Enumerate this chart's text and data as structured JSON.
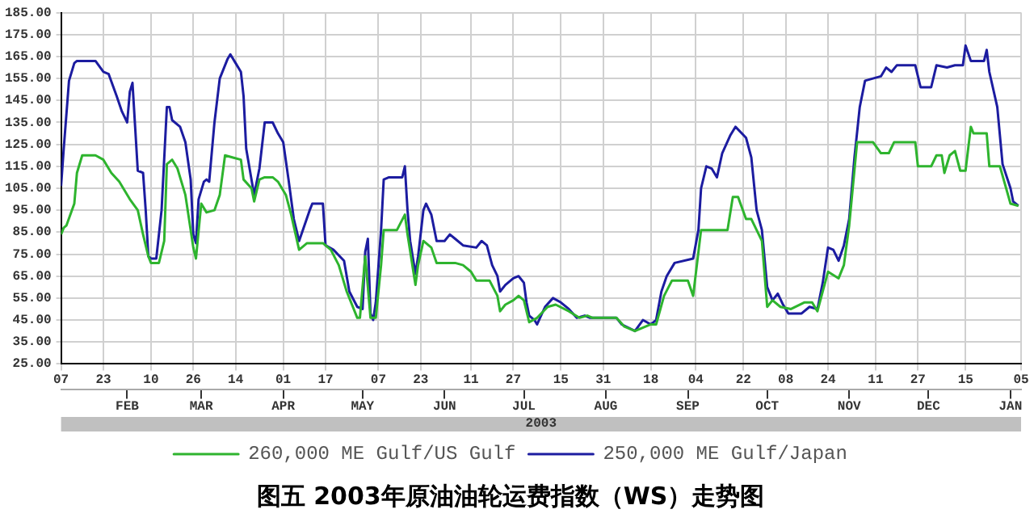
{
  "chart_data": {
    "type": "line",
    "title": "图五 2003年原油油轮运费指数（WS）走势图",
    "xlabel": "2003",
    "xlim": [
      "2003-01-07",
      "2004-01-05"
    ],
    "xticks": [
      {
        "value": "2003-01-07",
        "label": "07"
      },
      {
        "value": "2003-01-23",
        "label": "23"
      },
      {
        "value": "2003-02-10",
        "label": "10"
      },
      {
        "value": "2003-02-26",
        "label": "26"
      },
      {
        "value": "2003-03-14",
        "label": "14"
      },
      {
        "value": "2003-04-01",
        "label": "01"
      },
      {
        "value": "2003-04-17",
        "label": "17"
      },
      {
        "value": "2003-05-07",
        "label": "07"
      },
      {
        "value": "2003-05-23",
        "label": "23"
      },
      {
        "value": "2003-06-11",
        "label": "11"
      },
      {
        "value": "2003-06-27",
        "label": "27"
      },
      {
        "value": "2003-07-15",
        "label": "15"
      },
      {
        "value": "2003-07-31",
        "label": "31"
      },
      {
        "value": "2003-08-18",
        "label": "18"
      },
      {
        "value": "2003-09-04",
        "label": "04"
      },
      {
        "value": "2003-09-22",
        "label": "22"
      },
      {
        "value": "2003-10-08",
        "label": "08"
      },
      {
        "value": "2003-10-24",
        "label": "24"
      },
      {
        "value": "2003-11-11",
        "label": "11"
      },
      {
        "value": "2003-11-27",
        "label": "27"
      },
      {
        "value": "2003-12-15",
        "label": "15"
      },
      {
        "value": "2004-01-05",
        "label": "05"
      }
    ],
    "x2lim": [
      "2003-01-07",
      "2004-01-05"
    ],
    "x2ticks": [
      {
        "value": "2003-02-01",
        "label": "FEB"
      },
      {
        "value": "2003-03-01",
        "label": "MAR"
      },
      {
        "value": "2003-04-01",
        "label": "APR"
      },
      {
        "value": "2003-05-01",
        "label": "MAY"
      },
      {
        "value": "2003-06-01",
        "label": "JUN"
      },
      {
        "value": "2003-07-01",
        "label": "JUL"
      },
      {
        "value": "2003-08-01",
        "label": "AUG"
      },
      {
        "value": "2003-09-01",
        "label": "SEP"
      },
      {
        "value": "2003-10-01",
        "label": "OCT"
      },
      {
        "value": "2003-11-01",
        "label": "NOV"
      },
      {
        "value": "2003-12-01",
        "label": "DEC"
      },
      {
        "value": "2004-01-01",
        "label": "JAN"
      }
    ],
    "ylim": [
      25,
      185
    ],
    "yticks": [
      {
        "value": 25,
        "label": "25.00"
      },
      {
        "value": 35,
        "label": "35.00"
      },
      {
        "value": 45,
        "label": "45.00"
      },
      {
        "value": 55,
        "label": "55.00"
      },
      {
        "value": 65,
        "label": "65.00"
      },
      {
        "value": 75,
        "label": "75.00"
      },
      {
        "value": 85,
        "label": "85.00"
      },
      {
        "value": 95,
        "label": "95.00"
      },
      {
        "value": 105,
        "label": "105.00"
      },
      {
        "value": 115,
        "label": "115.00"
      },
      {
        "value": 125,
        "label": "125.00"
      },
      {
        "value": 135,
        "label": "135.00"
      },
      {
        "value": 145,
        "label": "145.00"
      },
      {
        "value": 155,
        "label": "155.00"
      },
      {
        "value": 165,
        "label": "165.00"
      },
      {
        "value": 175,
        "label": "175.00"
      },
      {
        "value": 185,
        "label": "185.00"
      }
    ],
    "grid": true,
    "legend": "bottom",
    "marker": "none",
    "line_style": "solid",
    "series": [
      {
        "name": "260,000 ME Gulf/US Gulf",
        "color": "#2eb42e",
        "x": [
          "2003-01-07",
          "2003-01-08",
          "2003-01-09",
          "2003-01-12",
          "2003-01-13",
          "2003-01-15",
          "2003-01-20",
          "2003-01-23",
          "2003-01-26",
          "2003-01-29",
          "2003-02-02",
          "2003-02-05",
          "2003-02-07",
          "2003-02-09",
          "2003-02-10",
          "2003-02-13",
          "2003-02-15",
          "2003-02-16",
          "2003-02-18",
          "2003-02-20",
          "2003-02-23",
          "2003-02-25",
          "2003-02-26",
          "2003-02-27",
          "2003-03-01",
          "2003-03-03",
          "2003-03-06",
          "2003-03-08",
          "2003-03-10",
          "2003-03-13",
          "2003-03-16",
          "2003-03-17",
          "2003-03-20",
          "2003-03-21",
          "2003-03-23",
          "2003-03-25",
          "2003-03-28",
          "2003-03-30",
          "2003-04-02",
          "2003-04-04",
          "2003-04-07",
          "2003-04-10",
          "2003-04-16",
          "2003-04-19",
          "2003-04-22",
          "2003-04-25",
          "2003-04-29",
          "2003-04-30",
          "2003-05-02",
          "2003-05-04",
          "2003-05-06",
          "2003-05-08",
          "2003-05-09",
          "2003-05-14",
          "2003-05-17",
          "2003-05-18",
          "2003-05-21",
          "2003-05-22",
          "2003-05-24",
          "2003-05-27",
          "2003-05-29",
          "2003-06-05",
          "2003-06-08",
          "2003-06-11",
          "2003-06-13",
          "2003-06-18",
          "2003-06-21",
          "2003-06-22",
          "2003-06-24",
          "2003-06-27",
          "2003-06-29",
          "2003-07-01",
          "2003-07-03",
          "2003-07-06",
          "2003-07-10",
          "2003-07-13",
          "2003-07-18",
          "2003-07-22",
          "2003-07-25",
          "2003-07-27",
          "2003-08-05",
          "2003-08-08",
          "2003-08-12",
          "2003-08-18",
          "2003-08-20",
          "2003-08-23",
          "2003-08-26",
          "2003-09-01",
          "2003-09-03",
          "2003-09-06",
          "2003-09-16",
          "2003-09-18",
          "2003-09-20",
          "2003-09-23",
          "2003-09-25",
          "2003-09-29",
          "2003-10-01",
          "2003-10-03",
          "2003-10-06",
          "2003-10-10",
          "2003-10-15",
          "2003-10-18",
          "2003-10-20",
          "2003-10-22",
          "2003-10-24",
          "2003-10-28",
          "2003-10-30",
          "2003-11-01",
          "2003-11-04",
          "2003-11-10",
          "2003-11-13",
          "2003-11-16",
          "2003-11-18",
          "2003-11-26",
          "2003-11-27",
          "2003-12-02",
          "2003-12-04",
          "2003-12-06",
          "2003-12-07",
          "2003-12-09",
          "2003-12-11",
          "2003-12-13",
          "2003-12-15",
          "2003-12-17",
          "2003-12-18",
          "2003-12-23",
          "2003-12-24",
          "2003-12-28",
          "2004-01-01",
          "2004-01-04"
        ],
        "values": [
          84,
          87,
          88,
          98,
          112,
          120,
          120,
          118,
          112,
          108,
          100,
          95,
          84,
          74,
          71,
          71,
          81,
          116,
          118,
          114,
          102,
          86,
          78,
          73,
          98,
          94,
          95,
          102,
          120,
          119,
          118,
          109,
          105,
          99,
          109,
          110,
          110,
          108,
          102,
          93,
          77,
          80,
          80,
          77,
          70,
          58,
          46,
          46,
          74,
          46,
          46,
          70,
          86,
          86,
          93,
          84,
          61,
          70,
          81,
          78,
          71,
          71,
          70,
          67,
          63,
          63,
          56,
          49,
          52,
          54,
          56,
          54,
          44,
          46,
          51,
          52,
          49,
          46,
          47,
          46,
          46,
          42,
          40,
          43,
          43,
          56,
          63,
          63,
          56,
          86,
          86,
          101,
          101,
          91,
          91,
          81,
          51,
          54,
          51,
          50,
          53,
          53,
          49,
          58,
          67,
          64,
          70,
          88,
          126,
          126,
          121,
          121,
          126,
          126,
          115,
          115,
          120,
          120,
          112,
          120,
          122,
          113,
          113,
          133,
          130,
          130,
          115,
          115,
          98,
          97
        ]
      },
      {
        "name": "250,000 ME Gulf/Japan",
        "color": "#1c1ca0",
        "x": [
          "2003-01-07",
          "2003-01-08",
          "2003-01-10",
          "2003-01-12",
          "2003-01-13",
          "2003-01-20",
          "2003-01-23",
          "2003-01-25",
          "2003-01-28",
          "2003-01-30",
          "2003-02-01",
          "2003-02-02",
          "2003-02-03",
          "2003-02-04",
          "2003-02-05",
          "2003-02-07",
          "2003-02-08",
          "2003-02-09",
          "2003-02-10",
          "2003-02-12",
          "2003-02-14",
          "2003-02-16",
          "2003-02-17",
          "2003-02-18",
          "2003-02-21",
          "2003-02-23",
          "2003-02-25",
          "2003-02-26",
          "2003-02-27",
          "2003-02-28",
          "2003-03-02",
          "2003-03-03",
          "2003-03-04",
          "2003-03-06",
          "2003-03-08",
          "2003-03-11",
          "2003-03-12",
          "2003-03-14",
          "2003-03-16",
          "2003-03-17",
          "2003-03-18",
          "2003-03-20",
          "2003-03-21",
          "2003-03-23",
          "2003-03-25",
          "2003-03-28",
          "2003-03-30",
          "2003-04-01",
          "2003-04-03",
          "2003-04-05",
          "2003-04-07",
          "2003-04-09",
          "2003-04-11",
          "2003-04-12",
          "2003-04-16",
          "2003-04-17",
          "2003-04-20",
          "2003-04-24",
          "2003-04-26",
          "2003-04-29",
          "2003-05-01",
          "2003-05-02",
          "2003-05-03",
          "2003-05-04",
          "2003-05-05",
          "2003-05-06",
          "2003-05-08",
          "2003-05-09",
          "2003-05-11",
          "2003-05-16",
          "2003-05-17",
          "2003-05-18",
          "2003-05-19",
          "2003-05-21",
          "2003-05-22",
          "2003-05-24",
          "2003-05-25",
          "2003-05-27",
          "2003-05-29",
          "2003-06-01",
          "2003-06-03",
          "2003-06-05",
          "2003-06-08",
          "2003-06-13",
          "2003-06-15",
          "2003-06-17",
          "2003-06-19",
          "2003-06-21",
          "2003-06-22",
          "2003-06-24",
          "2003-06-27",
          "2003-06-29",
          "2003-07-01",
          "2003-07-02",
          "2003-07-03",
          "2003-07-05",
          "2003-07-06",
          "2003-07-09",
          "2003-07-12",
          "2003-07-15",
          "2003-07-18",
          "2003-07-21",
          "2003-07-24",
          "2003-07-26",
          "2003-08-05",
          "2003-08-07",
          "2003-08-12",
          "2003-08-15",
          "2003-08-18",
          "2003-08-20",
          "2003-08-22",
          "2003-08-24",
          "2003-08-27",
          "2003-09-03",
          "2003-09-05",
          "2003-09-06",
          "2003-09-08",
          "2003-09-10",
          "2003-09-12",
          "2003-09-14",
          "2003-09-17",
          "2003-09-19",
          "2003-09-23",
          "2003-09-25",
          "2003-09-27",
          "2003-09-29",
          "2003-10-01",
          "2003-10-03",
          "2003-10-05",
          "2003-10-07",
          "2003-10-09",
          "2003-10-14",
          "2003-10-17",
          "2003-10-20",
          "2003-10-22",
          "2003-10-24",
          "2003-10-26",
          "2003-10-28",
          "2003-10-30",
          "2003-11-01",
          "2003-11-03",
          "2003-11-05",
          "2003-11-07",
          "2003-11-10",
          "2003-11-13",
          "2003-11-15",
          "2003-11-17",
          "2003-11-19",
          "2003-11-26",
          "2003-11-28",
          "2003-12-02",
          "2003-12-04",
          "2003-12-08",
          "2003-12-11",
          "2003-12-14",
          "2003-12-15",
          "2003-12-17",
          "2003-12-22",
          "2003-12-23",
          "2003-12-24",
          "2003-12-27",
          "2003-12-29",
          "2004-01-01",
          "2004-01-02",
          "2004-01-04"
        ],
        "values": [
          106,
          123,
          154,
          162,
          163,
          163,
          158,
          157,
          147,
          140,
          135,
          149,
          153,
          133,
          113,
          112,
          95,
          74,
          73,
          73,
          95,
          142,
          142,
          136,
          133,
          126,
          109,
          84,
          80,
          100,
          108,
          109,
          108,
          135,
          155,
          164,
          166,
          162,
          158,
          147,
          123,
          109,
          102,
          114,
          135,
          135,
          130,
          126,
          109,
          91,
          81,
          88,
          95,
          98,
          98,
          79,
          77,
          72,
          58,
          51,
          50,
          76,
          82,
          48,
          45,
          53,
          86,
          109,
          110,
          110,
          115,
          95,
          81,
          66,
          74,
          95,
          98,
          93,
          81,
          81,
          84,
          82,
          79,
          78,
          81,
          79,
          70,
          65,
          58,
          61,
          64,
          65,
          62,
          53,
          47,
          45,
          43,
          51,
          55,
          53,
          50,
          46,
          47,
          46,
          46,
          43,
          40,
          45,
          43,
          45,
          58,
          65,
          71,
          73,
          86,
          105,
          115,
          114,
          110,
          121,
          129,
          133,
          128,
          119,
          95,
          86,
          60,
          54,
          57,
          52,
          48,
          48,
          51,
          50,
          62,
          78,
          77,
          72,
          79,
          91,
          119,
          142,
          154,
          155,
          156,
          160,
          158,
          161,
          161,
          151,
          151,
          161,
          160,
          161,
          161,
          170,
          163,
          163,
          168,
          158,
          142,
          116,
          105,
          99,
          97
        ]
      }
    ]
  }
}
